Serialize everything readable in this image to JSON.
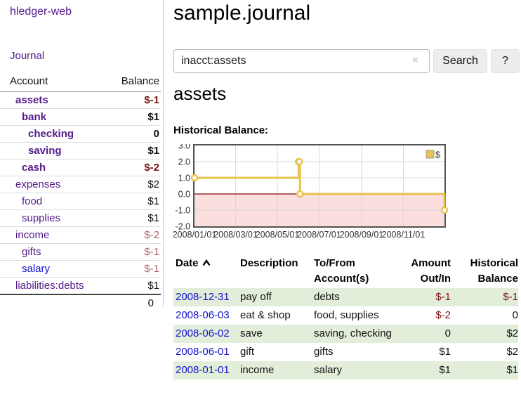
{
  "colors": {
    "purple_link": "#551a8b",
    "blue_link": "#1414cd",
    "negative": "#7d1414",
    "negative_muted": "#b35f5f",
    "row_green": "#e3eeda",
    "chart_gold": "#e8c34e",
    "chart_pink": "#fbdede",
    "chart_zero_line": "#8b0000",
    "chart_border": "#545454",
    "chart_grid": "#d9d9d9"
  },
  "sidebar": {
    "brand": "hledger-web",
    "journal_link": "Journal",
    "accounts": {
      "headers": {
        "account": "Account",
        "balance": "Balance"
      },
      "rows": [
        {
          "name": "assets",
          "depth": 1,
          "bold": true,
          "link_color": "purple",
          "balance": "$-1",
          "balance_bold": true,
          "negative": true,
          "muted": false
        },
        {
          "name": "bank",
          "depth": 2,
          "bold": true,
          "link_color": "purple",
          "balance": "$1",
          "balance_bold": true,
          "negative": false,
          "muted": false
        },
        {
          "name": "checking",
          "depth": 3,
          "bold": true,
          "link_color": "purple",
          "balance": "0",
          "balance_bold": true,
          "negative": false,
          "muted": false
        },
        {
          "name": "saving",
          "depth": 3,
          "bold": true,
          "link_color": "purple",
          "balance": "$1",
          "balance_bold": true,
          "negative": false,
          "muted": false
        },
        {
          "name": "cash",
          "depth": 2,
          "bold": true,
          "link_color": "purple",
          "balance": "$-2",
          "balance_bold": true,
          "negative": true,
          "muted": false
        },
        {
          "name": "expenses",
          "depth": 1,
          "bold": false,
          "link_color": "purple",
          "balance": "$2",
          "balance_bold": false,
          "negative": false,
          "muted": false
        },
        {
          "name": "food",
          "depth": 2,
          "bold": false,
          "link_color": "purple",
          "balance": "$1",
          "balance_bold": false,
          "negative": false,
          "muted": false
        },
        {
          "name": "supplies",
          "depth": 2,
          "bold": false,
          "link_color": "purple",
          "balance": "$1",
          "balance_bold": false,
          "negative": false,
          "muted": false
        },
        {
          "name": "income",
          "depth": 1,
          "bold": false,
          "link_color": "purple",
          "balance": "$-2",
          "balance_bold": false,
          "negative": true,
          "muted": true
        },
        {
          "name": "gifts",
          "depth": 2,
          "bold": false,
          "link_color": "purple",
          "balance": "$-1",
          "balance_bold": false,
          "negative": true,
          "muted": true
        },
        {
          "name": "salary",
          "depth": 2,
          "bold": false,
          "link_color": "blue",
          "balance": "$-1",
          "balance_bold": false,
          "negative": true,
          "muted": true
        },
        {
          "name": "liabilities:debts",
          "depth": 1,
          "bold": false,
          "link_color": "purple",
          "balance": "$1",
          "balance_bold": false,
          "negative": false,
          "muted": false
        }
      ],
      "total": "0"
    }
  },
  "header": {
    "title": "sample.journal"
  },
  "search": {
    "value": "inacct:assets",
    "clear_icon": "×",
    "button_label": "Search",
    "help_label": "?"
  },
  "account_page": {
    "title": "assets",
    "chart_title": "Historical Balance:"
  },
  "chart_data": {
    "type": "line",
    "title": "Historical Balance:",
    "step": true,
    "xlim": [
      "2008-01-01",
      "2008-12-31"
    ],
    "ylim": [
      -2.0,
      3.0
    ],
    "y_ticks": [
      3.0,
      2.0,
      1.0,
      0.0,
      -1.0,
      -2.0
    ],
    "x_ticks": [
      {
        "date": "2008-01-01",
        "label": "2008/01/01"
      },
      {
        "date": "2008-03-01",
        "label": "2008/03/01"
      },
      {
        "date": "2008-05-01",
        "label": "2008/05/01"
      },
      {
        "date": "2008-07-01",
        "label": "2008/07/01"
      },
      {
        "date": "2008-09-01",
        "label": "2008/09/01"
      },
      {
        "date": "2008-11-01",
        "label": "2008/11/01"
      }
    ],
    "series": [
      {
        "name": "$",
        "points": [
          {
            "date": "2008-01-01",
            "value": 1
          },
          {
            "date": "2008-06-01",
            "value": 2
          },
          {
            "date": "2008-06-02",
            "value": 2
          },
          {
            "date": "2008-06-03",
            "value": 0
          },
          {
            "date": "2008-12-31",
            "value": -1
          }
        ]
      }
    ],
    "legend": {
      "label": "$",
      "position": "top-right"
    },
    "grid": true,
    "negative_region_shaded": true
  },
  "transactions": {
    "headers": [
      {
        "label": "Date",
        "sorted": "asc",
        "align": "left"
      },
      {
        "label": "Description",
        "align": "left"
      },
      {
        "label": "To/From Account(s)",
        "align": "left"
      },
      {
        "label": "Amount Out/In",
        "align": "right"
      },
      {
        "label": "Historical Balance",
        "align": "right"
      }
    ],
    "rows": [
      {
        "date": "2008-12-31",
        "description": "pay off",
        "accounts": "debts",
        "amount": "$-1",
        "amount_negative": true,
        "balance": "$-1",
        "balance_negative": true
      },
      {
        "date": "2008-06-03",
        "description": "eat & shop",
        "accounts": "food, supplies",
        "amount": "$-2",
        "amount_negative": true,
        "balance": "0",
        "balance_negative": false
      },
      {
        "date": "2008-06-02",
        "description": "save",
        "accounts": "saving, checking",
        "amount": "0",
        "amount_negative": false,
        "balance": "$2",
        "balance_negative": false
      },
      {
        "date": "2008-06-01",
        "description": "gift",
        "accounts": "gifts",
        "amount": "$1",
        "amount_negative": false,
        "balance": "$2",
        "balance_negative": false
      },
      {
        "date": "2008-01-01",
        "description": "income",
        "accounts": "salary",
        "amount": "$1",
        "amount_negative": false,
        "balance": "$1",
        "balance_negative": false
      }
    ]
  }
}
